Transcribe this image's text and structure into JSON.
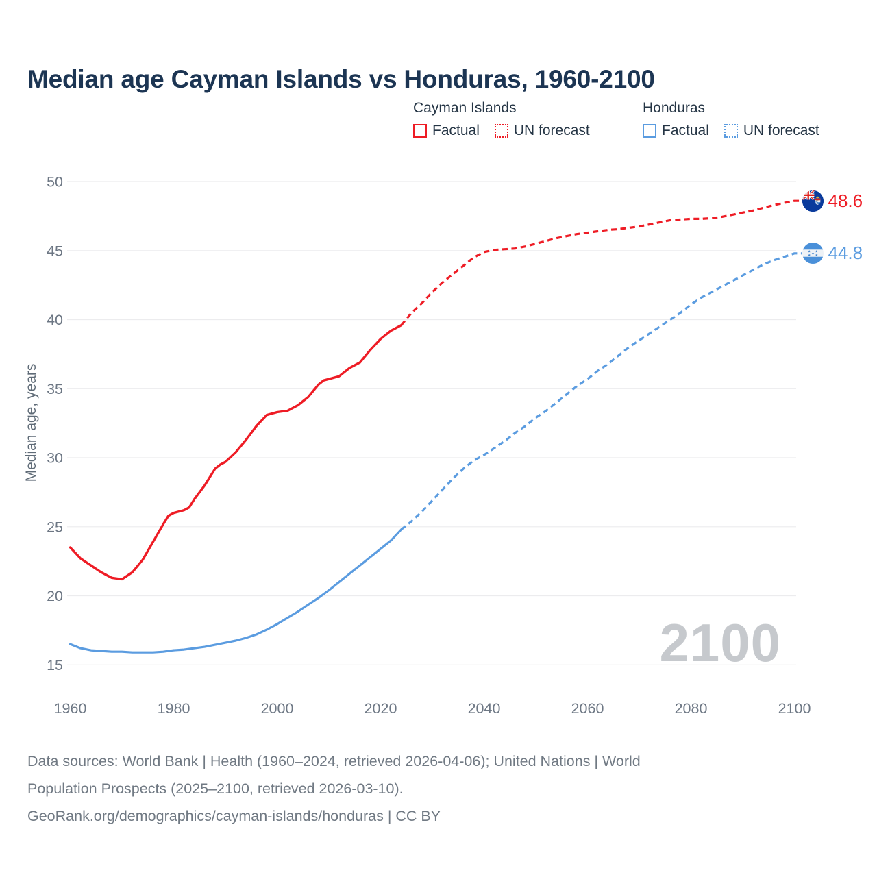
{
  "header": {
    "title": "Median age Cayman Islands vs Honduras, 1960-2100"
  },
  "legend": {
    "groups": [
      {
        "label": "Cayman Islands",
        "color": "#ee1c25",
        "items": [
          {
            "label": "Factual",
            "style": "solid"
          },
          {
            "label": "UN forecast",
            "style": "dotted"
          }
        ]
      },
      {
        "label": "Honduras",
        "color": "#5b9ce0",
        "items": [
          {
            "label": "Factual",
            "style": "solid"
          },
          {
            "label": "UN forecast",
            "style": "dotted"
          }
        ]
      }
    ]
  },
  "chart_data": {
    "type": "line",
    "title": "Median age Cayman Islands vs Honduras, 1960-2100",
    "xlabel": "",
    "ylabel": "Median age, years",
    "xlim": [
      1960,
      2100
    ],
    "ylim": [
      15,
      50
    ],
    "x_ticks": [
      1960,
      1980,
      2000,
      2020,
      2040,
      2060,
      2080,
      2100
    ],
    "y_ticks": [
      50,
      45,
      40,
      35,
      30,
      25,
      20,
      15
    ],
    "grid": "horizontal",
    "legend_position": "top-right",
    "watermark": "2100",
    "series": [
      {
        "name": "Cayman Islands — Factual",
        "country": "Cayman Islands",
        "color": "#ee1c25",
        "dash": false,
        "width": 3.4,
        "points": [
          [
            1960,
            23.5
          ],
          [
            1962,
            22.7
          ],
          [
            1964,
            22.2
          ],
          [
            1966,
            21.7
          ],
          [
            1968,
            21.3
          ],
          [
            1970,
            21.2
          ],
          [
            1972,
            21.7
          ],
          [
            1974,
            22.6
          ],
          [
            1976,
            23.9
          ],
          [
            1978,
            25.2
          ],
          [
            1979,
            25.8
          ],
          [
            1980,
            26.0
          ],
          [
            1982,
            26.2
          ],
          [
            1983,
            26.4
          ],
          [
            1984,
            27.0
          ],
          [
            1986,
            28.0
          ],
          [
            1988,
            29.2
          ],
          [
            1989,
            29.5
          ],
          [
            1990,
            29.7
          ],
          [
            1992,
            30.4
          ],
          [
            1994,
            31.3
          ],
          [
            1996,
            32.3
          ],
          [
            1998,
            33.1
          ],
          [
            2000,
            33.3
          ],
          [
            2002,
            33.4
          ],
          [
            2004,
            33.8
          ],
          [
            2006,
            34.4
          ],
          [
            2008,
            35.3
          ],
          [
            2009,
            35.6
          ],
          [
            2010,
            35.7
          ],
          [
            2012,
            35.9
          ],
          [
            2014,
            36.5
          ],
          [
            2016,
            36.9
          ],
          [
            2018,
            37.8
          ],
          [
            2020,
            38.6
          ],
          [
            2022,
            39.2
          ],
          [
            2024,
            39.6
          ]
        ]
      },
      {
        "name": "Cayman Islands — UN forecast",
        "country": "Cayman Islands",
        "color": "#ee1c25",
        "dash": true,
        "width": 3.2,
        "extends_to_marker": true,
        "points": [
          [
            2024,
            39.6
          ],
          [
            2026,
            40.5
          ],
          [
            2028,
            41.2
          ],
          [
            2030,
            42.0
          ],
          [
            2032,
            42.7
          ],
          [
            2034,
            43.3
          ],
          [
            2036,
            43.9
          ],
          [
            2038,
            44.5
          ],
          [
            2040,
            44.9
          ],
          [
            2042,
            45.05
          ],
          [
            2044,
            45.1
          ],
          [
            2046,
            45.15
          ],
          [
            2048,
            45.3
          ],
          [
            2050,
            45.5
          ],
          [
            2052,
            45.7
          ],
          [
            2054,
            45.9
          ],
          [
            2056,
            46.05
          ],
          [
            2058,
            46.2
          ],
          [
            2060,
            46.3
          ],
          [
            2062,
            46.4
          ],
          [
            2064,
            46.5
          ],
          [
            2066,
            46.55
          ],
          [
            2068,
            46.65
          ],
          [
            2070,
            46.75
          ],
          [
            2072,
            46.9
          ],
          [
            2074,
            47.05
          ],
          [
            2076,
            47.2
          ],
          [
            2078,
            47.25
          ],
          [
            2080,
            47.3
          ],
          [
            2082,
            47.3
          ],
          [
            2084,
            47.35
          ],
          [
            2086,
            47.45
          ],
          [
            2088,
            47.6
          ],
          [
            2090,
            47.75
          ],
          [
            2092,
            47.9
          ],
          [
            2094,
            48.1
          ],
          [
            2096,
            48.3
          ],
          [
            2098,
            48.45
          ],
          [
            2100,
            48.6
          ]
        ]
      },
      {
        "name": "Honduras — Factual",
        "country": "Honduras",
        "color": "#5b9ce0",
        "dash": false,
        "width": 3.2,
        "points": [
          [
            1960,
            16.5
          ],
          [
            1962,
            16.2
          ],
          [
            1964,
            16.05
          ],
          [
            1966,
            16.0
          ],
          [
            1968,
            15.95
          ],
          [
            1970,
            15.95
          ],
          [
            1972,
            15.9
          ],
          [
            1974,
            15.9
          ],
          [
            1976,
            15.9
          ],
          [
            1978,
            15.95
          ],
          [
            1980,
            16.05
          ],
          [
            1982,
            16.1
          ],
          [
            1984,
            16.2
          ],
          [
            1986,
            16.3
          ],
          [
            1988,
            16.45
          ],
          [
            1990,
            16.6
          ],
          [
            1992,
            16.75
          ],
          [
            1994,
            16.95
          ],
          [
            1996,
            17.2
          ],
          [
            1998,
            17.55
          ],
          [
            2000,
            17.95
          ],
          [
            2002,
            18.4
          ],
          [
            2004,
            18.85
          ],
          [
            2006,
            19.35
          ],
          [
            2008,
            19.85
          ],
          [
            2010,
            20.4
          ],
          [
            2012,
            21.0
          ],
          [
            2014,
            21.6
          ],
          [
            2016,
            22.2
          ],
          [
            2018,
            22.8
          ],
          [
            2020,
            23.4
          ],
          [
            2022,
            24.0
          ],
          [
            2024,
            24.8
          ]
        ]
      },
      {
        "name": "Honduras — UN forecast",
        "country": "Honduras",
        "color": "#5b9ce0",
        "dash": true,
        "width": 3.2,
        "extends_to_marker": true,
        "points": [
          [
            2024,
            24.8
          ],
          [
            2026,
            25.4
          ],
          [
            2028,
            26.1
          ],
          [
            2030,
            26.9
          ],
          [
            2032,
            27.7
          ],
          [
            2034,
            28.5
          ],
          [
            2036,
            29.2
          ],
          [
            2038,
            29.8
          ],
          [
            2040,
            30.2
          ],
          [
            2042,
            30.7
          ],
          [
            2044,
            31.2
          ],
          [
            2046,
            31.8
          ],
          [
            2048,
            32.3
          ],
          [
            2050,
            32.9
          ],
          [
            2052,
            33.4
          ],
          [
            2054,
            34.0
          ],
          [
            2056,
            34.6
          ],
          [
            2058,
            35.2
          ],
          [
            2060,
            35.7
          ],
          [
            2062,
            36.3
          ],
          [
            2064,
            36.8
          ],
          [
            2066,
            37.4
          ],
          [
            2068,
            38.0
          ],
          [
            2070,
            38.5
          ],
          [
            2072,
            39.0
          ],
          [
            2074,
            39.5
          ],
          [
            2076,
            40.0
          ],
          [
            2078,
            40.5
          ],
          [
            2080,
            41.1
          ],
          [
            2082,
            41.6
          ],
          [
            2084,
            42.0
          ],
          [
            2086,
            42.4
          ],
          [
            2088,
            42.8
          ],
          [
            2090,
            43.2
          ],
          [
            2092,
            43.6
          ],
          [
            2094,
            44.0
          ],
          [
            2096,
            44.3
          ],
          [
            2098,
            44.55
          ],
          [
            2100,
            44.8
          ]
        ]
      }
    ],
    "end_labels": [
      {
        "country": "Cayman Islands",
        "value": "48.6",
        "color": "#ee1c25",
        "flag": "cayman-islands"
      },
      {
        "country": "Honduras",
        "value": "44.8",
        "color": "#5b9ce0",
        "flag": "honduras"
      }
    ]
  },
  "footer": {
    "lines": [
      "Data sources: World Bank | Health (1960–2024, retrieved 2026-04-06); United Nations | World",
      "Population Prospects (2025–2100, retrieved 2026-03-10).",
      "GeoRank.org/demographics/cayman-islands/honduras | CC BY"
    ]
  }
}
